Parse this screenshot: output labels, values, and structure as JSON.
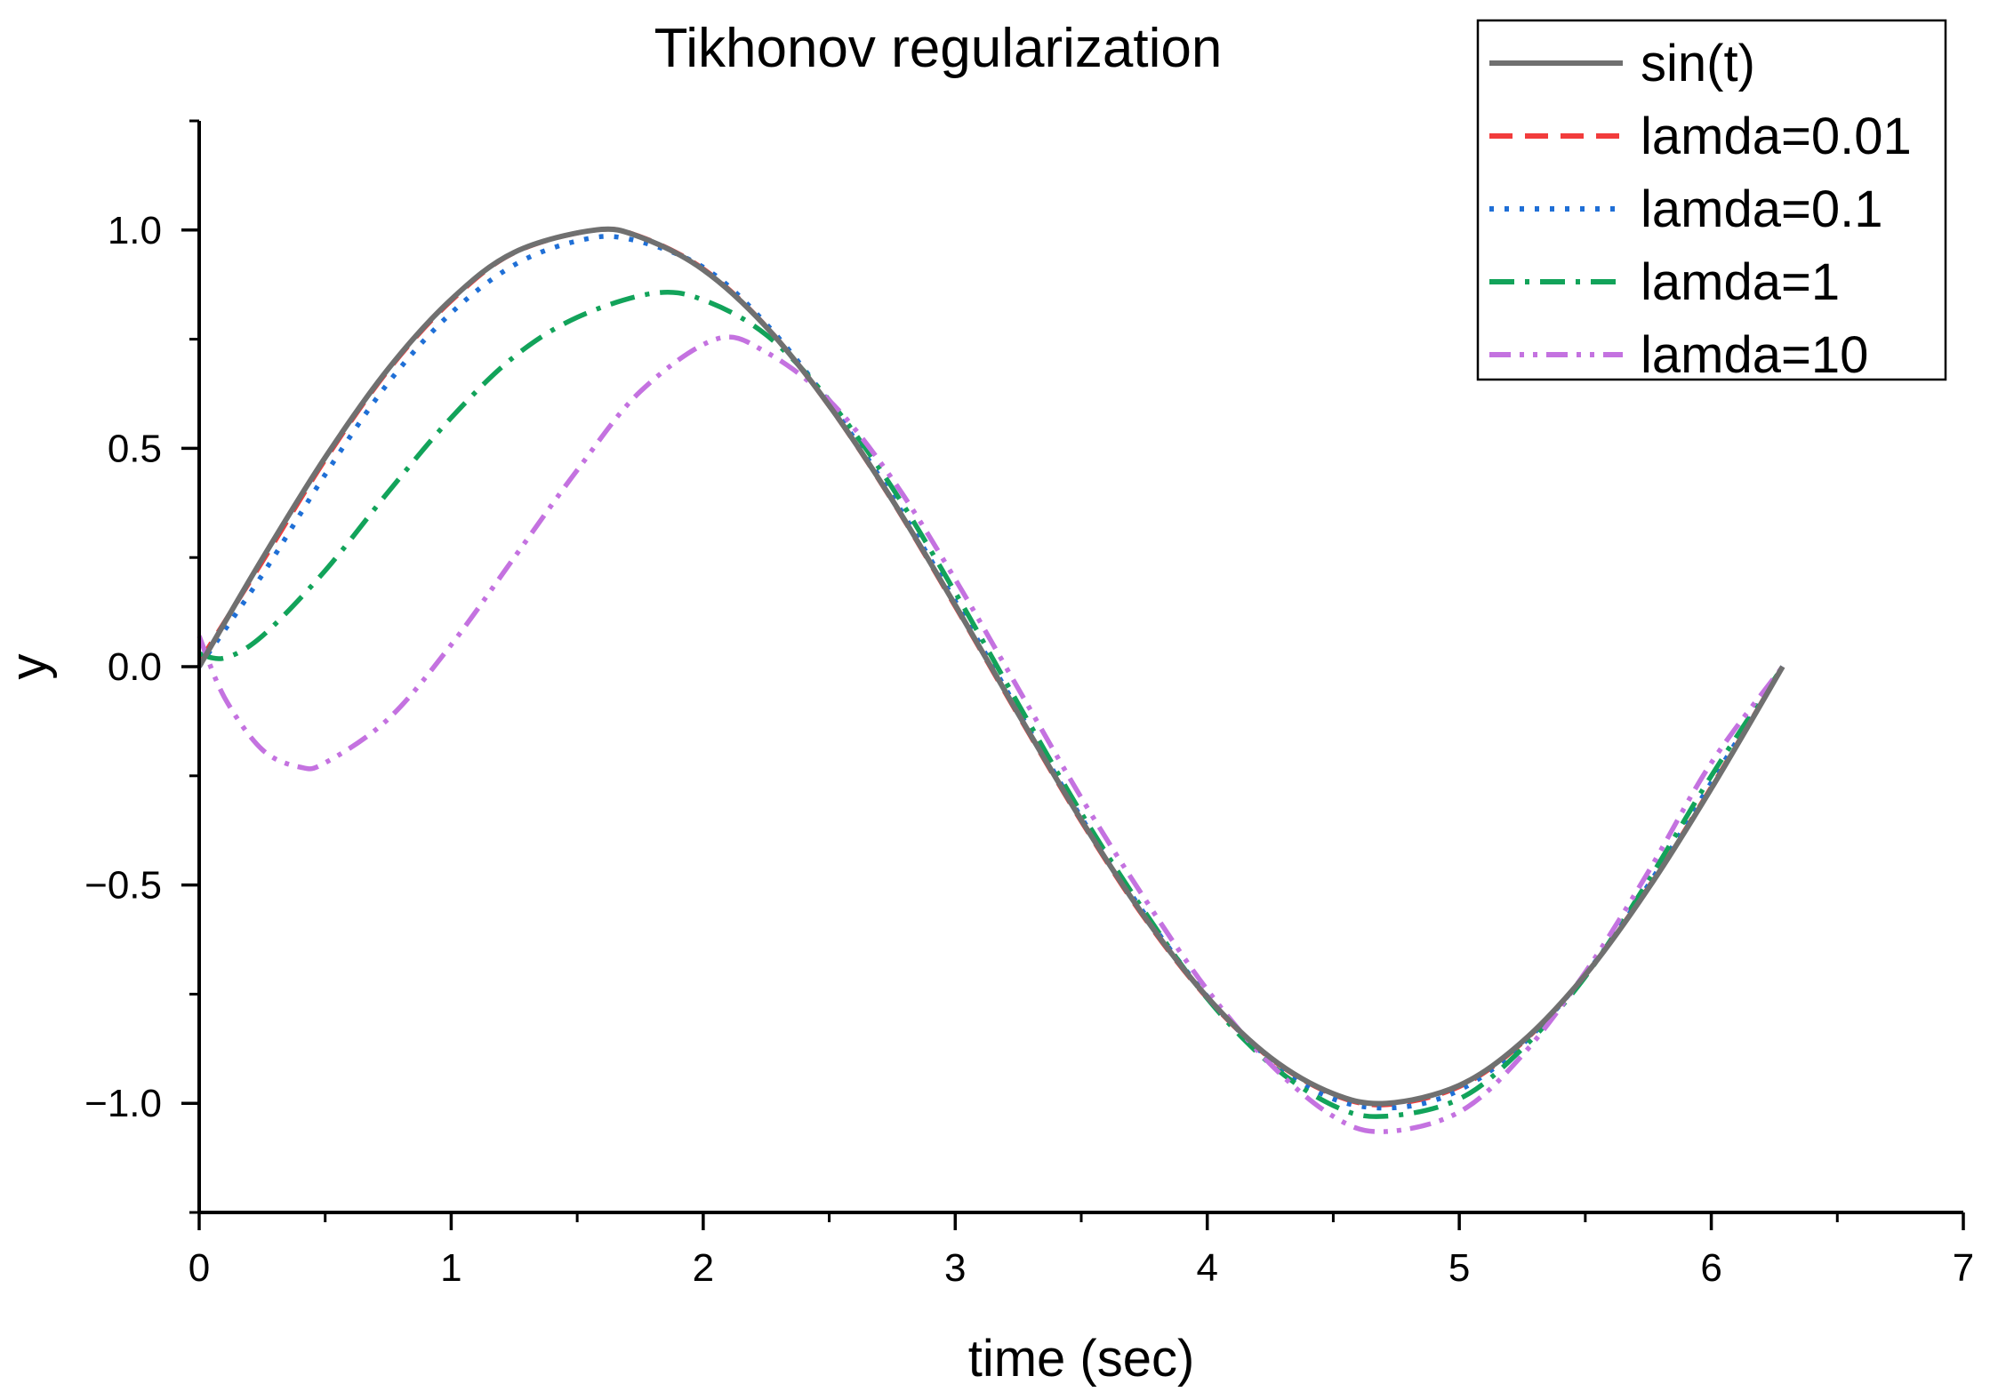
{
  "chart_data": {
    "type": "line",
    "title": "Tikhonov regularization",
    "xlabel": "time (sec)",
    "ylabel": "y",
    "xlim": [
      0,
      7
    ],
    "ylim": [
      -1.25,
      1.25
    ],
    "x_ticks": [
      0,
      1,
      2,
      3,
      4,
      5,
      6,
      7
    ],
    "x_tick_labels": [
      "0",
      "1",
      "2",
      "3",
      "4",
      "5",
      "6",
      "7"
    ],
    "y_ticks": [
      -1.0,
      -0.5,
      0.0,
      0.5,
      1.0
    ],
    "y_tick_labels": [
      "−1.0",
      "−0.5",
      "0.0",
      "0.5",
      "1.0"
    ],
    "grid": false,
    "legend_position": "top-right",
    "series": [
      {
        "name": "sin(t)",
        "color": "#707070",
        "dash": "solid",
        "x": [
          0,
          0.25,
          0.5,
          0.75,
          1.0,
          1.25,
          1.5708,
          1.75,
          2.0,
          2.25,
          2.5,
          2.75,
          3.0,
          3.25,
          3.5,
          3.75,
          4.0,
          4.25,
          4.5,
          4.7124,
          5.0,
          5.25,
          5.5,
          5.75,
          6.0,
          6.2832
        ],
        "values": [
          0,
          0.247,
          0.479,
          0.682,
          0.841,
          0.949,
          1.0,
          0.984,
          0.909,
          0.778,
          0.598,
          0.382,
          0.141,
          -0.108,
          -0.351,
          -0.572,
          -0.757,
          -0.895,
          -0.978,
          -1.0,
          -0.959,
          -0.859,
          -0.706,
          -0.508,
          -0.279,
          0
        ]
      },
      {
        "name": "lamda=0.01",
        "color": "#f23c3c",
        "dash": "dash",
        "x": [
          0,
          0.25,
          0.5,
          0.75,
          1.0,
          1.25,
          1.5708,
          1.75,
          2.0,
          2.25,
          2.5,
          2.75,
          3.0,
          3.25,
          3.5,
          3.75,
          4.0,
          4.25,
          4.5,
          4.7124,
          5.0,
          5.25,
          5.5,
          5.75,
          6.0,
          6.2832
        ],
        "values": [
          0.01,
          0.24,
          0.474,
          0.679,
          0.838,
          0.948,
          1.0,
          0.985,
          0.911,
          0.779,
          0.597,
          0.38,
          0.138,
          -0.111,
          -0.354,
          -0.575,
          -0.759,
          -0.897,
          -0.98,
          -1.003,
          -0.962,
          -0.861,
          -0.706,
          -0.506,
          -0.276,
          0
        ]
      },
      {
        "name": "lamda=0.1",
        "color": "#1f6fd6",
        "dash": "dot",
        "x": [
          0,
          0.25,
          0.5,
          0.75,
          1.0,
          1.25,
          1.5,
          1.7,
          2.0,
          2.25,
          2.5,
          2.75,
          3.0,
          3.25,
          3.5,
          3.75,
          4.0,
          4.25,
          4.5,
          4.75,
          5.0,
          5.25,
          5.5,
          5.75,
          6.0,
          6.2832
        ],
        "values": [
          0,
          0.21,
          0.44,
          0.65,
          0.81,
          0.92,
          0.975,
          0.98,
          0.915,
          0.785,
          0.605,
          0.39,
          0.15,
          -0.1,
          -0.345,
          -0.565,
          -0.755,
          -0.9,
          -0.99,
          -1.01,
          -0.97,
          -0.865,
          -0.705,
          -0.5,
          -0.265,
          0
        ]
      },
      {
        "name": "lamda=1",
        "color": "#12a35a",
        "dash": "dashdot",
        "x": [
          0,
          0.1,
          0.25,
          0.5,
          0.75,
          1.0,
          1.25,
          1.5,
          1.8,
          2.0,
          2.25,
          2.5,
          2.75,
          3.0,
          3.25,
          3.5,
          3.75,
          4.0,
          4.25,
          4.5,
          4.7,
          5.0,
          5.25,
          5.5,
          5.75,
          6.0,
          6.2832
        ],
        "values": [
          0.03,
          0.02,
          0.07,
          0.22,
          0.4,
          0.57,
          0.71,
          0.8,
          0.855,
          0.84,
          0.76,
          0.61,
          0.41,
          0.17,
          -0.085,
          -0.335,
          -0.56,
          -0.76,
          -0.91,
          -1.005,
          -1.03,
          -0.99,
          -0.875,
          -0.71,
          -0.49,
          -0.25,
          0
        ]
      },
      {
        "name": "lamda=10",
        "color": "#c472e0",
        "dash": "dashdotdot",
        "x": [
          0,
          0.1,
          0.25,
          0.4,
          0.5,
          0.75,
          1.0,
          1.25,
          1.5,
          1.75,
          2.05,
          2.25,
          2.5,
          2.75,
          3.0,
          3.25,
          3.5,
          3.75,
          4.0,
          4.25,
          4.5,
          4.7,
          5.0,
          5.25,
          5.5,
          5.75,
          6.0,
          6.2832
        ],
        "values": [
          0.07,
          -0.07,
          -0.19,
          -0.23,
          -0.22,
          -0.12,
          0.05,
          0.25,
          0.45,
          0.63,
          0.75,
          0.72,
          0.61,
          0.43,
          0.2,
          -0.05,
          -0.3,
          -0.53,
          -0.74,
          -0.91,
          -1.03,
          -1.065,
          -1.02,
          -0.89,
          -0.7,
          -0.47,
          -0.22,
          0
        ]
      }
    ]
  }
}
